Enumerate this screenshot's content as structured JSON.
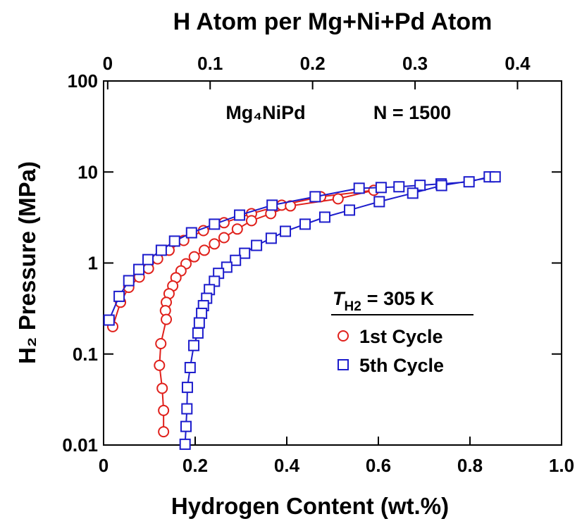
{
  "chart_data": {
    "type": "scatter",
    "xlabel": "Hydrogen Content (wt.%)",
    "ylabel": "H₂ Pressure (MPa)",
    "x2label": "H Atom per Mg+Ni+Pd Atom",
    "annotation_alloy": "Mg₄NiPd",
    "annotation_cycles": "N = 1500",
    "legend_title": {
      "symbol": "T",
      "subscript": "H2",
      "text": "= 305 K"
    },
    "xlim": [
      0,
      1
    ],
    "xticks": [
      0,
      0.2,
      0.4,
      0.6,
      0.8,
      {
        "value": 1,
        "label": "1.0"
      }
    ],
    "x2lim": [
      -0.004,
      0.443
    ],
    "x2ticks": [
      0,
      0.1,
      0.2,
      0.3,
      0.4
    ],
    "ylim": [
      0.01,
      100
    ],
    "yticks": [
      0.01,
      0.1,
      1,
      10,
      100
    ],
    "log_y": true,
    "series": [
      {
        "name": "1st Cycle",
        "color": "#e0201b",
        "marker": "circle",
        "x": [
          0.02,
          0.037,
          0.055,
          0.078,
          0.098,
          0.118,
          0.143,
          0.175,
          0.218,
          0.263,
          0.323,
          0.389,
          0.474,
          0.59,
          0.512,
          0.408,
          0.365,
          0.323,
          0.292,
          0.263,
          0.242,
          0.22,
          0.198,
          0.18,
          0.169,
          0.158,
          0.151,
          0.143,
          0.137,
          0.135,
          0.137,
          0.125,
          0.122,
          0.128,
          0.131,
          0.131
        ],
        "y": [
          0.2,
          0.37,
          0.54,
          0.7,
          0.87,
          1.11,
          1.38,
          1.77,
          2.27,
          2.77,
          3.49,
          4.32,
          5.35,
          6.29,
          5.07,
          4.24,
          3.49,
          2.92,
          2.36,
          1.9,
          1.62,
          1.38,
          1.17,
          0.98,
          0.82,
          0.69,
          0.56,
          0.46,
          0.37,
          0.3,
          0.24,
          0.13,
          0.075,
          0.042,
          0.024,
          0.014
        ]
      },
      {
        "name": "5th Cycle",
        "color": "#1c1ccc",
        "marker": "square",
        "x": [
          0.012,
          0.034,
          0.055,
          0.077,
          0.097,
          0.126,
          0.155,
          0.192,
          0.242,
          0.297,
          0.368,
          0.462,
          0.558,
          0.606,
          0.645,
          0.691,
          0.737,
          0.798,
          0.842,
          0.855,
          0.738,
          0.675,
          0.602,
          0.537,
          0.483,
          0.44,
          0.397,
          0.366,
          0.334,
          0.308,
          0.288,
          0.269,
          0.251,
          0.242,
          0.231,
          0.225,
          0.218,
          0.214,
          0.209,
          0.206,
          0.197,
          0.189,
          0.183,
          0.182,
          0.18,
          0.178
        ],
        "y": [
          0.236,
          0.43,
          0.64,
          0.85,
          1.09,
          1.38,
          1.74,
          2.15,
          2.67,
          3.36,
          4.32,
          5.35,
          6.63,
          6.75,
          6.88,
          7.14,
          7.4,
          7.8,
          8.84,
          8.84,
          7.1,
          5.85,
          4.72,
          3.81,
          3.19,
          2.67,
          2.23,
          1.87,
          1.56,
          1.28,
          1.07,
          0.9,
          0.77,
          0.63,
          0.51,
          0.41,
          0.34,
          0.28,
          0.22,
          0.17,
          0.124,
          0.071,
          0.043,
          0.025,
          0.016,
          0.0102
        ]
      }
    ]
  }
}
